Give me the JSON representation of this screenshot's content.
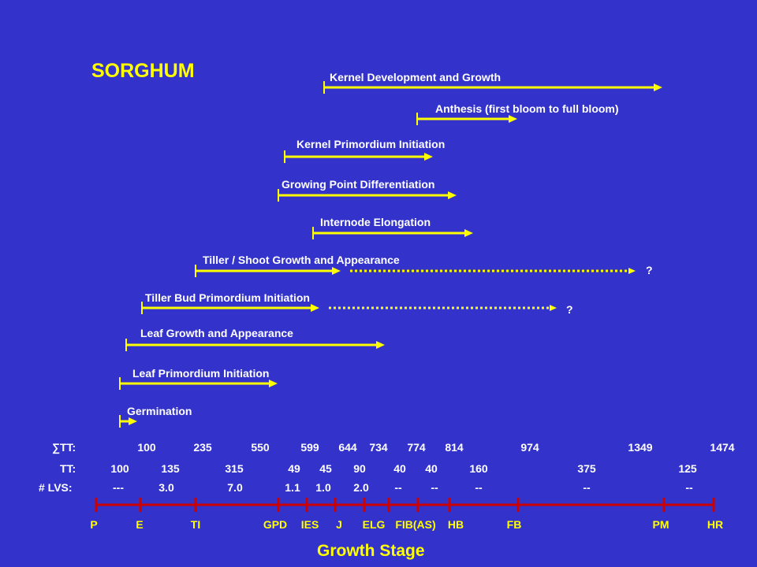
{
  "title": "SORGHUM",
  "growth_stage_label": "Growth Stage",
  "colors": {
    "background": "#3333cc",
    "arrow": "#ffff00",
    "text": "#ffffff",
    "axis": "#cc0000"
  },
  "processes": [
    {
      "label": "Kernel Development and Growth"
    },
    {
      "label": "Anthesis (first bloom to full bloom)"
    },
    {
      "label": "Kernel Primordium Initiation"
    },
    {
      "label": "Growing Point Differentiation"
    },
    {
      "label": "Internode Elongation"
    },
    {
      "label": "Tiller / Shoot Growth and Appearance",
      "note": "?"
    },
    {
      "label": "Tiller Bud Primordium Initiation",
      "note": "?"
    },
    {
      "label": "Leaf Growth and Appearance"
    },
    {
      "label": "Leaf Primordium Initiation"
    },
    {
      "label": "Germination"
    }
  ],
  "sum_tt": {
    "label": "∑TT:",
    "values": [
      "100",
      "235",
      "550",
      "599",
      "644",
      "734",
      "774",
      "814",
      "974",
      "1349",
      "1474"
    ]
  },
  "tt": {
    "label": "TT:",
    "values": [
      "100",
      "135",
      "315",
      "49",
      "45",
      "90",
      "40",
      "40",
      "160",
      "375",
      "125"
    ]
  },
  "lvs": {
    "label": "# LVS:",
    "values": [
      "---",
      "3.0",
      "7.0",
      "1.1",
      "1.0",
      "2.0",
      "--",
      "--",
      "--",
      "--",
      "--"
    ]
  },
  "stages": [
    "P",
    "E",
    "TI",
    "GPD",
    "IES",
    "J",
    "ELG",
    "FIB(AS)",
    "HB",
    "FB",
    "PM",
    "HR"
  ]
}
